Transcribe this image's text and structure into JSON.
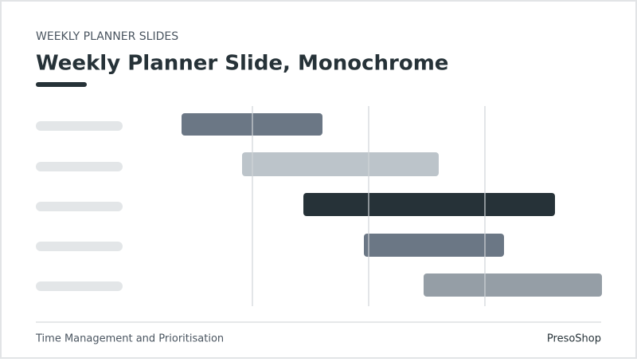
{
  "header": {
    "kicker": "WEEKLY PLANNER SLIDES",
    "title": "Weekly Planner Slide, Monochrome"
  },
  "footer": {
    "left": "Time Management and Prioritisation",
    "right": "PresoShop"
  }
}
